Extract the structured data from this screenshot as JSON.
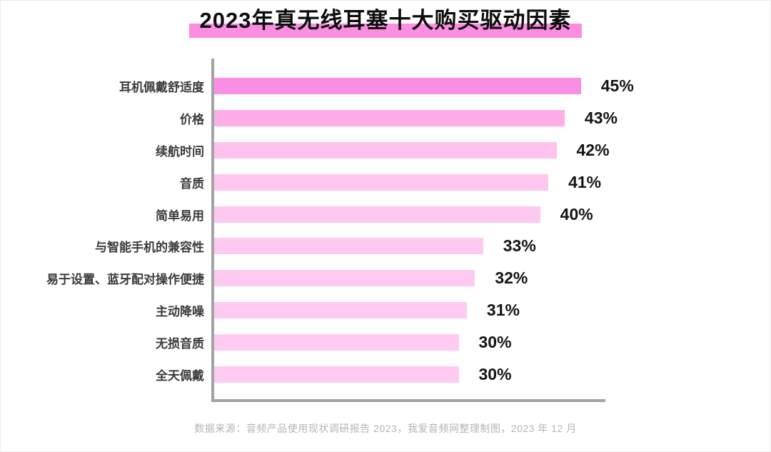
{
  "title": "2023年真无线耳塞十大购买驱动因素",
  "footer": "数据来源：音频产品使用现状调研报告 2023，我爱音频网整理制图，2023 年 12 月",
  "colors": {
    "background": "#ffffff",
    "title_highlight": "#fb8ee1",
    "axis": "#a3a3a3",
    "category_label": "#3c3c3c",
    "value_label": "#141414",
    "footer_text": "#b5b5b5"
  },
  "chart_data": {
    "type": "bar",
    "orientation": "horizontal",
    "title": "2023年真无线耳塞十大购买驱动因素",
    "categories": [
      "耳机佩戴舒适度",
      "价格",
      "续航时间",
      "音质",
      "简单易用",
      "与智能手机的兼容性",
      "易于设置、蓝牙配对操作便捷",
      "主动降噪",
      "无损音质",
      "全天佩戴"
    ],
    "values": [
      45,
      43,
      42,
      41,
      40,
      33,
      32,
      31,
      30,
      30
    ],
    "value_labels": [
      "45%",
      "43%",
      "42%",
      "41%",
      "40%",
      "33%",
      "32%",
      "31%",
      "30%",
      "30%"
    ],
    "bar_colors": [
      "#fa8ee3",
      "#ffade9",
      "#ffc2ef",
      "#ffc6f0",
      "#ffc8f1",
      "#ffcaf2",
      "#ffcaf2",
      "#ffcbf2",
      "#ffcbf2",
      "#ffcbf2"
    ],
    "xlabel": "",
    "ylabel": "",
    "xlim": [
      0,
      48
    ],
    "grid": false,
    "legend": null,
    "value_label_position": "right-of-bar-end",
    "source_note": "数据来源：音频产品使用现状调研报告 2023，我爱音频网整理制图，2023 年 12 月"
  }
}
